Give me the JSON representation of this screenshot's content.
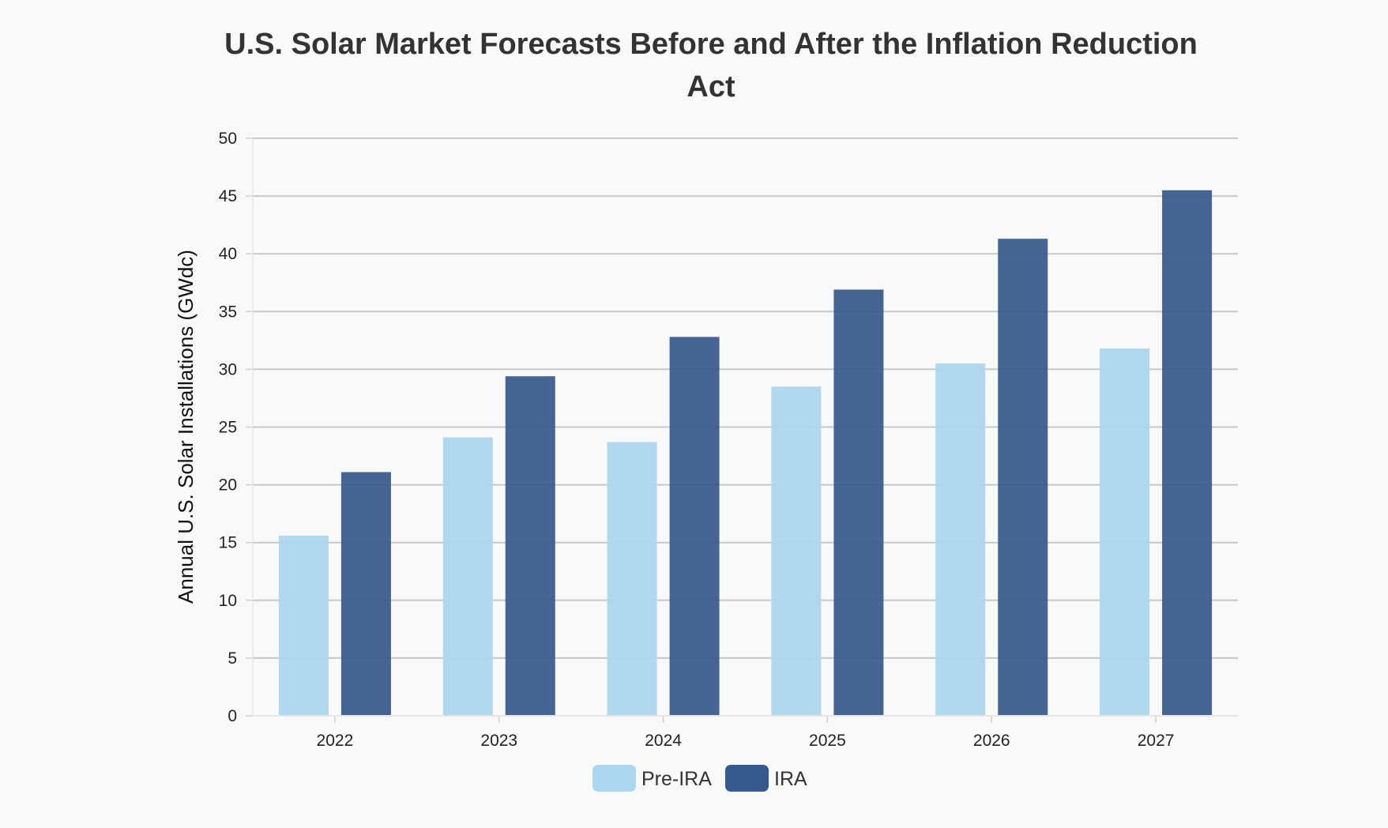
{
  "chart_data": {
    "type": "bar",
    "title_lines": [
      "U.S. Solar Market Forecasts Before and After the Inflation Reduction",
      "Act"
    ],
    "categories": [
      "2022",
      "2023",
      "2024",
      "2025",
      "2026",
      "2027"
    ],
    "series": [
      {
        "name": "Pre-IRA",
        "color": "#acd6ee",
        "values": [
          15.6,
          24.1,
          23.7,
          28.5,
          30.5,
          31.8
        ]
      },
      {
        "name": "IRA",
        "color": "#36588a",
        "values": [
          21.1,
          29.4,
          32.8,
          36.9,
          41.3,
          45.5
        ]
      }
    ],
    "ylabel": "Annual U.S. Solar Installations (GWdc)",
    "ylim": [
      0,
      50
    ],
    "yticks": [
      "0",
      "5",
      "10",
      "15",
      "20",
      "25",
      "30",
      "35",
      "40",
      "45",
      "50"
    ],
    "grid": true,
    "legend_position": "bottom-center"
  }
}
